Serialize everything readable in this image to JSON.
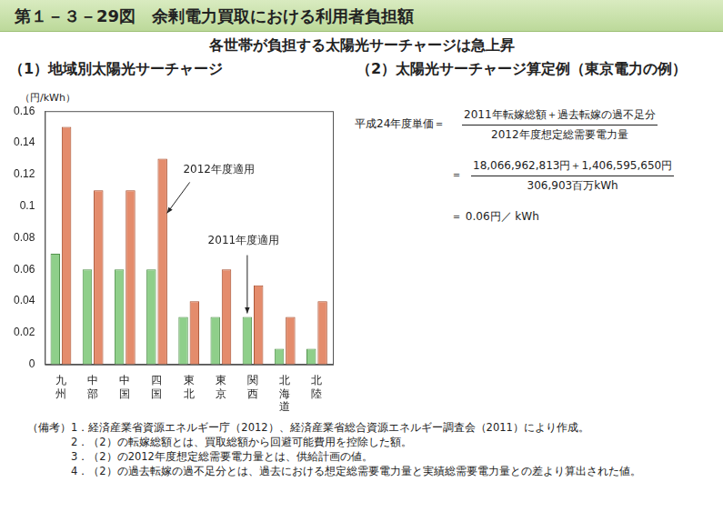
{
  "title": "第１－３－29図　余剰電力買取における利用者負担額",
  "subtitle": "各世帯が負担する太陽光サーチャージは急上昇",
  "chart_data": {
    "type": "bar",
    "title": "（1）地域別太陽光サーチャージ",
    "y_label": "（円/kWh）",
    "categories": [
      "九州",
      "中部",
      "中国",
      "四国",
      "東北",
      "東京",
      "関西",
      "北海道",
      "北陸"
    ],
    "series": [
      {
        "name": "2011年度適用",
        "color": "#8fcf8a",
        "values": [
          0.07,
          0.06,
          0.06,
          0.06,
          0.03,
          0.03,
          0.03,
          0.01,
          0.01
        ]
      },
      {
        "name": "2012年度適用",
        "color": "#e48c6c",
        "values": [
          0.15,
          0.11,
          0.11,
          0.13,
          0.04,
          0.06,
          0.05,
          0.03,
          0.04
        ]
      }
    ],
    "ylim": [
      0,
      0.16
    ],
    "yticks": [
      0,
      0.02,
      0.04,
      0.06,
      0.08,
      0.1,
      0.12,
      0.14,
      0.16
    ],
    "grid": false,
    "legend": false,
    "annotations": [
      {
        "text": "2012年度適用",
        "category": "四国",
        "series": "2012年度適用"
      },
      {
        "text": "2011年度適用",
        "category": "関西",
        "series": "2011年度適用"
      }
    ]
  },
  "calculation": {
    "title": "（2）太陽光サーチャージ算定例（東京電力の例）",
    "lhs": "平成24年度単価＝",
    "numerator": "2011年転嫁総額＋過去転嫁の過不足分",
    "denominator": "2012年度想定総需要電力量",
    "equals": "＝",
    "numerator_values": "18,066,962,813円＋1,406,595,650円",
    "denominator_values": "306,903百万kWh",
    "result": "＝ 0.06円／ kWh"
  },
  "notes": {
    "label": "（備考）",
    "items": [
      "1．経済産業省資源エネルギー庁（2012）、経済産業省総合資源エネルギー調査会（2011）により作成。",
      "2．（2）の転嫁総額とは、買取総額から回避可能費用を控除した額。",
      "3．（2）の2012年度想定総需要電力量とは、供給計画の値。",
      "4．（2）の過去転嫁の過不足分とは、過去における想定総需要電力量と実績総需要電力量との差より算出された値。"
    ]
  }
}
